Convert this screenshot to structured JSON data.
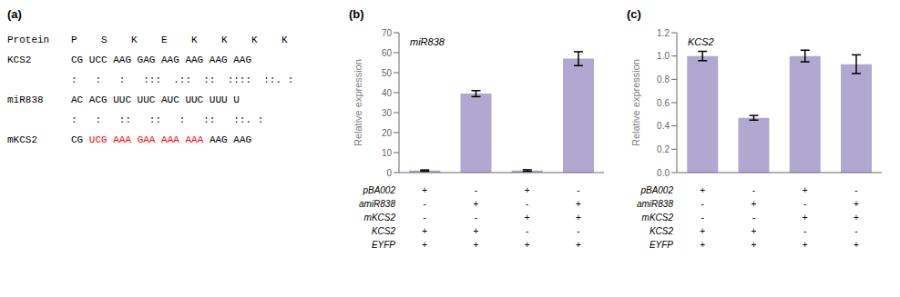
{
  "chart_data": [
    {
      "type": "text",
      "title": "(a)",
      "rows": [
        {
          "label": "Protein",
          "segments": [
            {
              "text": "P    S    K    E    K    K    K    K",
              "color": "black"
            }
          ]
        },
        {
          "label": "KCS2",
          "segments": [
            {
              "text": "CG UCC AAG GAG AAG AAG AAG AAG",
              "color": "black"
            }
          ]
        },
        {
          "segments": [
            {
              "text": ":   :   :   :::  .::  ::  ::::  ::. :",
              "color": "black"
            }
          ]
        },
        {
          "label": "miR838",
          "segments": [
            {
              "text": "AC ACG UUC UUC AUC UUC UUU U",
              "color": "black"
            }
          ]
        },
        {
          "segments": [
            {
              "text": ":   :   ::   ::   :   ::   ::. :",
              "color": "black"
            }
          ]
        },
        {
          "label": "mKCS2",
          "segments": [
            {
              "text": "CG ",
              "color": "black"
            },
            {
              "text": "UCG",
              "color": "red"
            },
            {
              "text": " ",
              "color": "black"
            },
            {
              "text": "AAA",
              "color": "red"
            },
            {
              "text": " ",
              "color": "black"
            },
            {
              "text": "GAA",
              "color": "red"
            },
            {
              "text": " ",
              "color": "black"
            },
            {
              "text": "AAA",
              "color": "red"
            },
            {
              "text": " ",
              "color": "black"
            },
            {
              "text": "AAA",
              "color": "red"
            },
            {
              "text": " AAG AAG",
              "color": "black"
            }
          ]
        }
      ]
    },
    {
      "type": "bar",
      "annotations": [
        "(b)"
      ],
      "title": "miR838",
      "ylabel": "Relative expression",
      "categories": [
        null,
        null,
        null,
        null
      ],
      "values": [
        1.0,
        39.5,
        1.0,
        57.0
      ],
      "errors": [
        0.3,
        1.5,
        0.4,
        3.5
      ],
      "color": "#b0a8d0",
      "ylim": [
        0,
        70
      ],
      "yticks": [
        0,
        10,
        20,
        30,
        40,
        50,
        60,
        70
      ],
      "grid": false,
      "table": {
        "rows": [
          "pBA002",
          "amiR838",
          "mKCS2",
          "KCS2",
          "EYFP"
        ],
        "cells": [
          [
            "+",
            "-",
            "+",
            "-"
          ],
          [
            "-",
            "+",
            "-",
            "+"
          ],
          [
            "-",
            "-",
            "+",
            "+"
          ],
          [
            "+",
            "+",
            "-",
            "-"
          ],
          [
            "+",
            "+",
            "+",
            "+"
          ]
        ]
      }
    },
    {
      "type": "bar",
      "annotations": [
        "(c)"
      ],
      "title": "KCS2",
      "ylabel": "Relative expression",
      "categories": [
        null,
        null,
        null,
        null
      ],
      "values": [
        1.0,
        0.47,
        1.0,
        0.93
      ],
      "errors": [
        0.04,
        0.02,
        0.05,
        0.08
      ],
      "color": "#b0a8d0",
      "ylim": [
        0,
        1.2
      ],
      "yticks": [
        {
          "value": 0,
          "label": "0.0"
        },
        0.2,
        0.4,
        0.6,
        0.8,
        {
          "value": 1,
          "label": "1.0"
        },
        1.2
      ],
      "grid": false,
      "table": {
        "rows": [
          "pBA002",
          "amiR838",
          "mKCS2",
          "KCS2",
          "EYFP"
        ],
        "cells": [
          [
            "+",
            "-",
            "+",
            "-"
          ],
          [
            "-",
            "+",
            "-",
            "+"
          ],
          [
            "-",
            "-",
            "+",
            "+"
          ],
          [
            "+",
            "+",
            "-",
            "-"
          ],
          [
            "+",
            "+",
            "+",
            "+"
          ]
        ]
      }
    }
  ]
}
